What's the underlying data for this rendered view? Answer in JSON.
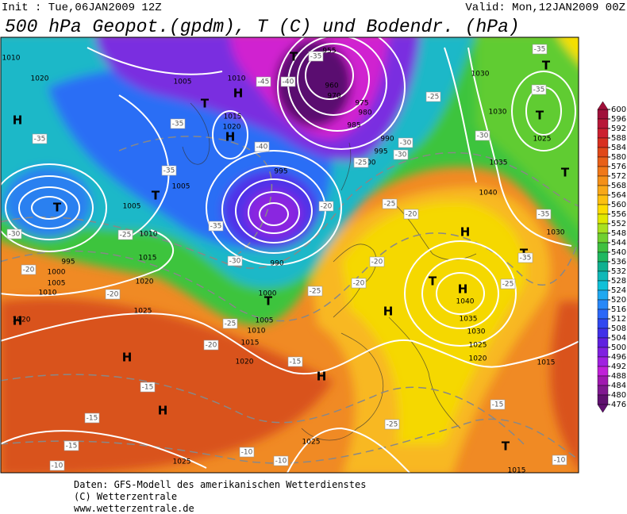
{
  "header": {
    "init": "Init : Tue,06JAN2009 12Z",
    "valid": "Valid: Mon,12JAN2009 00Z",
    "title": "500 hPa Geopot.(gpdm), T (C) und Bodendr. (hPa)"
  },
  "colorbar": {
    "ticks": [
      600,
      596,
      592,
      588,
      584,
      580,
      576,
      572,
      568,
      564,
      560,
      556,
      552,
      548,
      544,
      540,
      536,
      532,
      528,
      524,
      520,
      516,
      512,
      508,
      504,
      500,
      496,
      492,
      488,
      484,
      480,
      476
    ],
    "band_colors": [
      "#a0103a",
      "#b81838",
      "#cc2030",
      "#d83020",
      "#e04818",
      "#e86018",
      "#f07818",
      "#f49018",
      "#f8a818",
      "#fcc010",
      "#fcdc00",
      "#e0e800",
      "#a8e020",
      "#70d030",
      "#40c040",
      "#20b860",
      "#10b090",
      "#10b8b8",
      "#10c0d8",
      "#20a8f0",
      "#2888f8",
      "#2c68f8",
      "#3048f0",
      "#4030e8",
      "#6020e0",
      "#8020e0",
      "#a020e0",
      "#c020d8",
      "#a018b0",
      "#801890",
      "#601070"
    ]
  },
  "map_labels": {
    "highs_lows": [
      "H",
      "H",
      "H",
      "T",
      "T",
      "T",
      "T",
      "T",
      "T",
      "T",
      "H",
      "T",
      "H",
      "H",
      "H",
      "H",
      "H",
      "T",
      "T",
      "H",
      "T"
    ],
    "isobars": [
      "1010",
      "1020",
      "1005",
      "1010",
      "1015",
      "1020",
      "1005",
      "1005",
      "1010",
      "1015",
      "1020",
      "1025",
      "995",
      "1000",
      "1005",
      "1010",
      "1020",
      "955",
      "960",
      "970",
      "975",
      "980",
      "985",
      "990",
      "995",
      "1000",
      "995",
      "990",
      "1000",
      "1005",
      "1010",
      "1015",
      "1020",
      "1030",
      "1030",
      "1025",
      "1035",
      "1040",
      "1030",
      "1040",
      "1035",
      "1030",
      "1025",
      "1020",
      "1015",
      "1025",
      "1025",
      "1015"
    ],
    "temperatures": [
      "-35",
      "-30",
      "-25",
      "-20",
      "-20",
      "-15",
      "-15",
      "-15",
      "-10",
      "-10",
      "-10",
      "-10",
      "-15",
      "-20",
      "-25",
      "-15",
      "-25",
      "-35",
      "-35",
      "-30",
      "-35",
      "-35",
      "-25",
      "-25",
      "-35",
      "-35",
      "-40",
      "-40",
      "-45",
      "-35",
      "-30",
      "-35",
      "-25",
      "-20",
      "-20",
      "-20",
      "-25",
      "-30",
      "-30",
      "-20",
      "-25"
    ]
  },
  "footer": [
    "Daten: GFS-Modell des amerikanischen Wetterdienstes",
    "(C) Wetterzentrale",
    "www.wetterzentrale.de"
  ]
}
